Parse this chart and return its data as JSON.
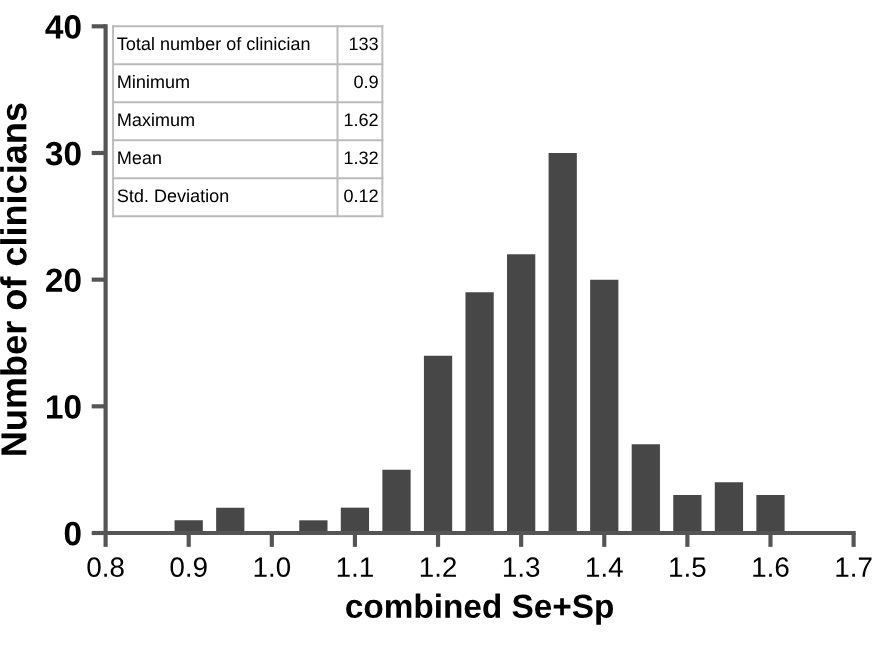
{
  "chart_data": {
    "type": "histogram",
    "xlabel": "combined Se+Sp",
    "ylabel": "Number of clinicians",
    "bins": [
      0.875,
      0.925,
      0.975,
      1.025,
      1.075,
      1.125,
      1.175,
      1.225,
      1.275,
      1.325,
      1.375,
      1.425,
      1.475,
      1.525,
      1.575,
      1.625
    ],
    "values": [
      1,
      2,
      0,
      1,
      2,
      5,
      14,
      19,
      22,
      30,
      20,
      7,
      3,
      4,
      3
    ],
    "color": "#474747",
    "xlim": [
      0.8,
      1.7
    ],
    "xticks": [
      {
        "value": 0.8,
        "label": "0.8"
      },
      {
        "value": 0.9,
        "label": "0.9"
      },
      {
        "value": 1.0,
        "label": "1.0"
      },
      {
        "value": 1.1,
        "label": "1.1"
      },
      {
        "value": 1.2,
        "label": "1.2"
      },
      {
        "value": 1.3,
        "label": "1.3"
      },
      {
        "value": 1.4,
        "label": "1.4"
      },
      {
        "value": 1.5,
        "label": "1.5"
      },
      {
        "value": 1.6,
        "label": "1.6"
      },
      {
        "value": 1.7,
        "label": "1.7"
      }
    ],
    "ylim": [
      0,
      40
    ],
    "yticks": [
      0,
      10,
      20,
      30,
      40
    ],
    "annotations": [
      "Total number of clinician",
      "133",
      "Minimum",
      "0.9",
      "Maximum",
      "1.62",
      "Mean",
      "1.32",
      "Std. Deviation",
      "0.12"
    ],
    "grid": false,
    "legend": false
  }
}
